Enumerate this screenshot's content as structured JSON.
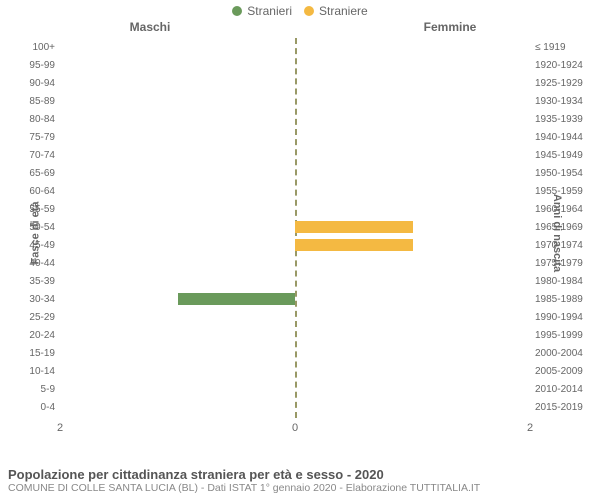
{
  "legend": {
    "male": {
      "label": "Stranieri",
      "color": "#6a9a5b"
    },
    "female": {
      "label": "Straniere",
      "color": "#f4b942"
    }
  },
  "headers": {
    "left": "Maschi",
    "right": "Femmine"
  },
  "axis_titles": {
    "left": "Fasce di età",
    "right": "Anni di nascita"
  },
  "x_axis": {
    "max": 2,
    "ticks": [
      2,
      0,
      2
    ]
  },
  "colors": {
    "bg": "#ffffff",
    "label": "#666666",
    "center_line": "#999966",
    "title": "#555555",
    "sub": "#888888"
  },
  "fontsize": {
    "label": 10,
    "axis_title": 11,
    "header": 12,
    "legend": 12,
    "title": 13,
    "sub": 10.5
  },
  "rows": [
    {
      "age": "100+",
      "birth": "≤ 1919",
      "male": 0,
      "female": 0
    },
    {
      "age": "95-99",
      "birth": "1920-1924",
      "male": 0,
      "female": 0
    },
    {
      "age": "90-94",
      "birth": "1925-1929",
      "male": 0,
      "female": 0
    },
    {
      "age": "85-89",
      "birth": "1930-1934",
      "male": 0,
      "female": 0
    },
    {
      "age": "80-84",
      "birth": "1935-1939",
      "male": 0,
      "female": 0
    },
    {
      "age": "75-79",
      "birth": "1940-1944",
      "male": 0,
      "female": 0
    },
    {
      "age": "70-74",
      "birth": "1945-1949",
      "male": 0,
      "female": 0
    },
    {
      "age": "65-69",
      "birth": "1950-1954",
      "male": 0,
      "female": 0
    },
    {
      "age": "60-64",
      "birth": "1955-1959",
      "male": 0,
      "female": 0
    },
    {
      "age": "55-59",
      "birth": "1960-1964",
      "male": 0,
      "female": 0
    },
    {
      "age": "50-54",
      "birth": "1965-1969",
      "male": 0,
      "female": 1
    },
    {
      "age": "45-49",
      "birth": "1970-1974",
      "male": 0,
      "female": 1
    },
    {
      "age": "40-44",
      "birth": "1975-1979",
      "male": 0,
      "female": 0
    },
    {
      "age": "35-39",
      "birth": "1980-1984",
      "male": 0,
      "female": 0
    },
    {
      "age": "30-34",
      "birth": "1985-1989",
      "male": 1,
      "female": 0
    },
    {
      "age": "25-29",
      "birth": "1990-1994",
      "male": 0,
      "female": 0
    },
    {
      "age": "20-24",
      "birth": "1995-1999",
      "male": 0,
      "female": 0
    },
    {
      "age": "15-19",
      "birth": "2000-2004",
      "male": 0,
      "female": 0
    },
    {
      "age": "10-14",
      "birth": "2005-2009",
      "male": 0,
      "female": 0
    },
    {
      "age": "5-9",
      "birth": "2010-2014",
      "male": 0,
      "female": 0
    },
    {
      "age": "0-4",
      "birth": "2015-2019",
      "male": 0,
      "female": 0
    }
  ],
  "caption": {
    "title": "Popolazione per cittadinanza straniera per età e sesso - 2020",
    "sub": "COMUNE DI COLLE SANTA LUCIA (BL) - Dati ISTAT 1° gennaio 2020 - Elaborazione TUTTITALIA.IT"
  }
}
